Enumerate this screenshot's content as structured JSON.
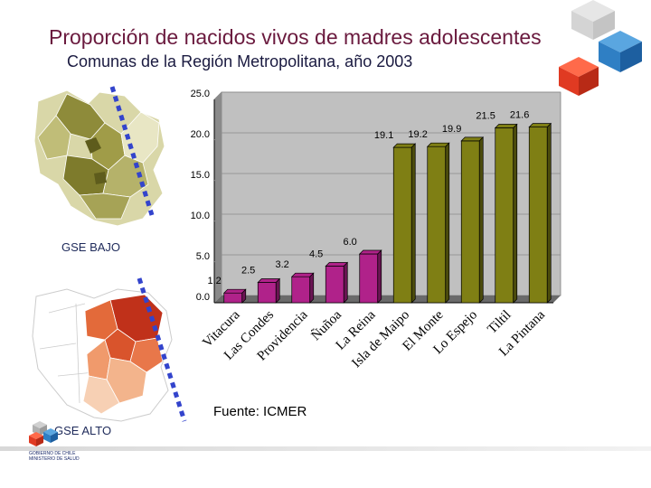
{
  "header": {
    "title": "Proporción de nacidos vivos de madres adolescentes",
    "subtitle": "Comunas de la Región Metropolitana, año 2003"
  },
  "labels": {
    "gse_bajo": "GSE BAJO",
    "gse_alto": "GSE ALTO",
    "source": "Fuente: ICMER"
  },
  "footer": {
    "gov_line1": "GOBIERNO DE CHILE",
    "gov_line2": "MINISTERIO DE SALUD"
  },
  "colors": {
    "title": "#6a1a3e",
    "bar_low": "#b0228a",
    "bar_high": "#7f7f14",
    "wall": "#c0c0c0",
    "dashes": "#3344cc"
  },
  "chart_data": {
    "type": "bar",
    "title": "",
    "xlabel": "",
    "ylabel": "",
    "ylim": [
      0,
      25
    ],
    "yticks": [
      0,
      5,
      10,
      15,
      20,
      25
    ],
    "ytick_labels": [
      "0.0",
      "5.0",
      "10.0",
      "15.0",
      "20.0",
      "25.0"
    ],
    "categories": [
      "Vitacura",
      "Las Condes",
      "Providencia",
      "Ñuñoa",
      "La Reina",
      "Isla de Maipo",
      "El Monte",
      "Lo Espejo",
      "Tiltil",
      "La Pintana"
    ],
    "values": [
      1.2,
      2.5,
      3.2,
      4.5,
      6.0,
      19.1,
      19.2,
      19.9,
      21.5,
      21.6
    ],
    "value_labels": [
      "1.2",
      "2.5",
      "3.2",
      "4.5",
      "6.0",
      "19.1",
      "19.2",
      "19.9",
      "21.5",
      "21.6"
    ],
    "series_colors": [
      "#b0228a",
      "#b0228a",
      "#b0228a",
      "#b0228a",
      "#b0228a",
      "#7f7f14",
      "#7f7f14",
      "#7f7f14",
      "#7f7f14",
      "#7f7f14"
    ]
  }
}
